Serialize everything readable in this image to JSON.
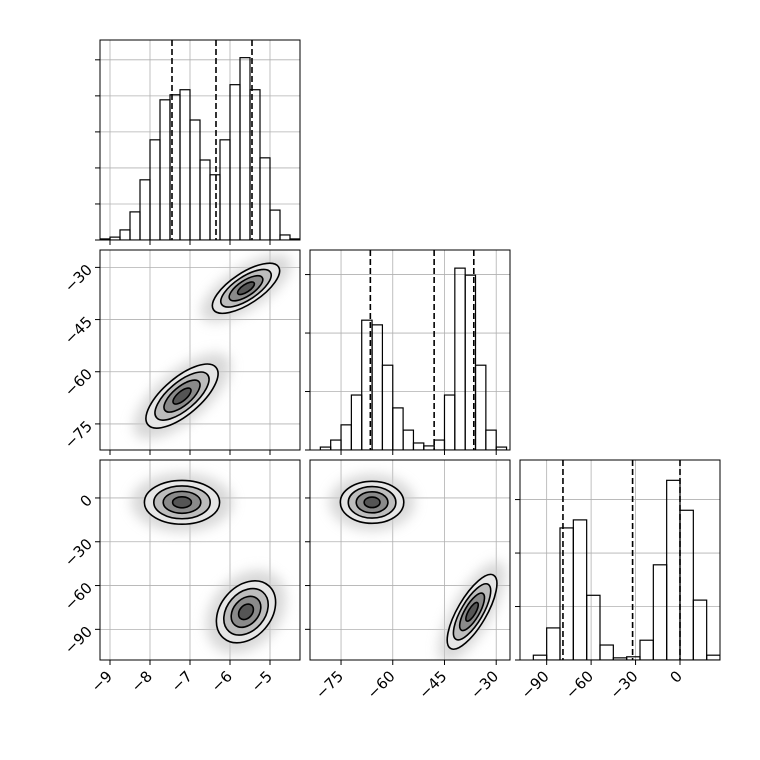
{
  "chart_data": [
    {
      "type": "hist",
      "color": "#000000",
      "xlim": [
        -9.25,
        -4.25
      ],
      "xticks": [
        -9,
        -8,
        -7,
        -6,
        -5
      ],
      "ylim": [
        0,
        555
      ],
      "yticks": [
        0,
        100,
        200,
        300,
        400,
        500
      ],
      "bins": [
        -9.25,
        -9,
        -8.75,
        -8.5,
        -8.25,
        -8,
        -7.75,
        -7.5,
        -7.25,
        -7,
        -6.75,
        -6.5,
        -6.25,
        -6,
        -5.75,
        -5.5,
        -5.25,
        -5,
        -4.75,
        -4.5,
        -4.25
      ],
      "counts": [
        3,
        8,
        28,
        78,
        167,
        278,
        389,
        403,
        417,
        333,
        222,
        181,
        278,
        431,
        506,
        417,
        228,
        83,
        14,
        3
      ],
      "quantiles": [
        -7.45,
        -6.35,
        -5.45
      ]
    },
    {
      "type": "contour",
      "xlim": [
        -9.25,
        -4.25
      ],
      "xticks": [
        -9,
        -8,
        -7,
        -6,
        -5
      ],
      "ylim": [
        -82.5,
        -25
      ],
      "yticks": [
        {
          "value": -30,
          "label": "−30"
        },
        {
          "value": -45,
          "label": "−45"
        },
        {
          "value": -60,
          "label": "−60"
        },
        {
          "value": -75,
          "label": "−75"
        }
      ],
      "levels": [
        0.5,
        1,
        1.5,
        2
      ],
      "clusters": [
        {
          "x": -5.6,
          "y": -36,
          "sx": 0.42,
          "sy": 3.6,
          "rho": 0.7
        },
        {
          "x": -7.2,
          "y": -67,
          "sx": 0.45,
          "sy": 4.6,
          "rho": 0.7
        }
      ]
    },
    {
      "type": "hist",
      "color": "#000000",
      "xlim": [
        -84,
        -26
      ],
      "xticks": [
        -75,
        -60,
        -45,
        -30
      ],
      "ylim": [
        0,
        342
      ],
      "yticks": [
        0,
        100,
        200,
        300
      ],
      "bins": [
        -84,
        -81,
        -78,
        -75,
        -72,
        -69,
        -66,
        -63,
        -60,
        -57,
        -54,
        -51,
        -48,
        -45,
        -42,
        -39,
        -36,
        -33,
        -30,
        -27
      ],
      "counts": [
        0,
        5,
        17,
        43,
        94,
        222,
        214,
        145,
        72,
        34,
        12,
        7,
        17,
        94,
        311,
        299,
        145,
        34,
        5
      ],
      "quantiles": [
        -66.5,
        -48,
        -36.5
      ]
    },
    {
      "type": "contour",
      "xlim": [
        -9.25,
        -4.25
      ],
      "xticks": [
        {
          "value": -9,
          "label": "−9"
        },
        {
          "value": -8,
          "label": "−8"
        },
        {
          "value": -7,
          "label": "−7"
        },
        {
          "value": -6,
          "label": "−6"
        },
        {
          "value": -5,
          "label": "−5"
        }
      ],
      "ylim": [
        -111,
        26
      ],
      "yticks": [
        0,
        {
          "value": -30,
          "label": "−30"
        },
        {
          "value": -60,
          "label": "−60"
        },
        {
          "value": -90,
          "label": "−90"
        }
      ],
      "levels": [
        0.5,
        1,
        1.5,
        2
      ],
      "clusters": [
        {
          "x": -7.2,
          "y": -3,
          "sx": 0.47,
          "sy": 7.5,
          "rho": 0
        },
        {
          "x": -5.6,
          "y": -78,
          "sx": 0.37,
          "sy": 10.6,
          "rho": 0.3
        }
      ]
    },
    {
      "type": "contour",
      "xlim": [
        -84,
        -26
      ],
      "xticks": [
        {
          "value": -75,
          "label": "−75"
        },
        {
          "value": -60,
          "label": "−60"
        },
        {
          "value": -45,
          "label": "−45"
        },
        {
          "value": -30,
          "label": "−30"
        }
      ],
      "ylim": [
        -111,
        26
      ],
      "yticks": [
        0,
        -30,
        -60,
        -90
      ],
      "levels": [
        0.5,
        1,
        1.5,
        2
      ],
      "clusters": [
        {
          "x": -66,
          "y": -3,
          "sx": 4.6,
          "sy": 7.2,
          "rho": 0
        },
        {
          "x": -37,
          "y": -78,
          "sx": 3.6,
          "sy": 12.8,
          "rho": 0.75
        }
      ]
    },
    {
      "type": "hist",
      "color": "#000000",
      "xlim": [
        -108,
        27
      ],
      "xticks": [
        {
          "value": -90,
          "label": "−90"
        },
        {
          "value": -60,
          "label": "−60"
        },
        {
          "value": -30,
          "label": "−30"
        },
        0
      ],
      "ylim": [
        0,
        374
      ],
      "yticks": [
        0,
        100,
        200,
        300
      ],
      "bins": [
        -108,
        -99,
        -90,
        -81,
        -72,
        -63,
        -54,
        -45,
        -36,
        -27,
        -18,
        -9,
        0,
        9,
        18,
        27
      ],
      "counts": [
        0,
        9,
        60,
        247,
        262,
        121,
        28,
        4,
        6,
        37,
        178,
        336,
        280,
        112,
        9
      ],
      "quantiles": [
        -79,
        -32,
        0
      ]
    }
  ]
}
